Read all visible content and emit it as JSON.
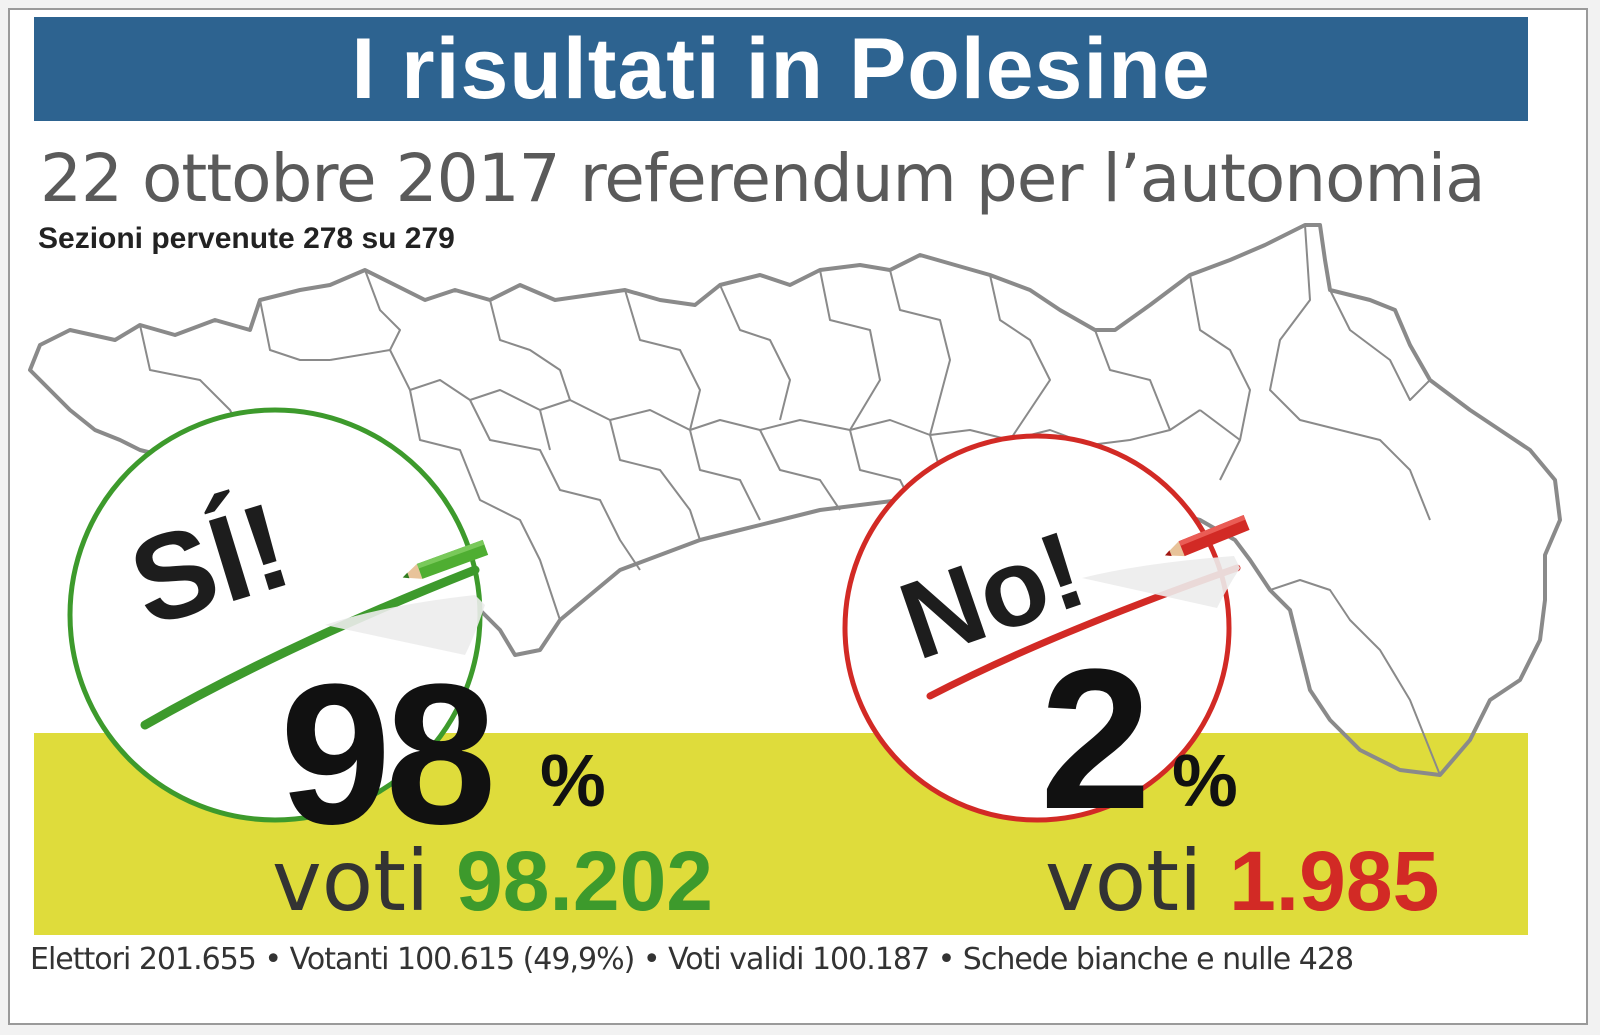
{
  "title": "I risultati in Polesine",
  "subtitle": "22 ottobre 2017 referendum per l’autonomia",
  "sections_note": "Sezioni pervenute 278 su 279",
  "yes": {
    "stamp": "SÍ!",
    "percent": "98",
    "percent_sign": "%",
    "votes_label": "voti",
    "votes_value": "98.202",
    "color": "#3d9a2c"
  },
  "no": {
    "stamp": "No!",
    "percent": "2",
    "percent_sign": "%",
    "votes_label": "voti",
    "votes_value": "1.985",
    "color": "#d22a25"
  },
  "footer_stats": "Elettori 201.655 • Votanti 100.615 (49,9%) • Voti validi 100.187 • Schede bianche e nulle 428",
  "colors": {
    "title_bar": "#2d6390",
    "band": "#dfdc3b",
    "map_line": "#8a8a8a"
  },
  "icons": [
    "polesine-map-graphic",
    "green-pencil-icon",
    "red-pencil-icon"
  ]
}
